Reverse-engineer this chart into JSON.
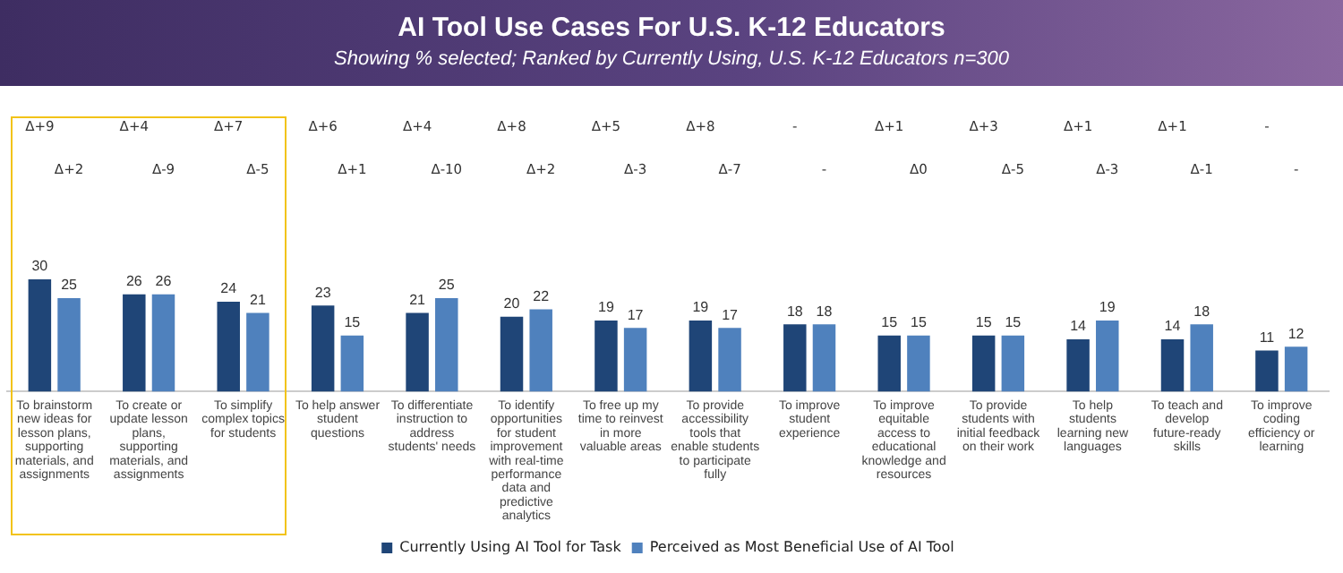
{
  "chart_data": {
    "type": "bar",
    "title": "AI Tool Use Cases For U.S. K-12 Educators",
    "subtitle": "Showing % selected; Ranked by Currently Using, U.S. K-12 Educators n=300",
    "categories": [
      "To brainstorm new ideas for lesson plans, supporting materials, and assignments",
      "To create or update lesson plans, supporting materials, and assignments",
      "To simplify complex topics for students",
      "To help answer student questions",
      "To differentiate instruction to address students' needs",
      "To identify opportunities for student improvement with real-time performance data and predictive analytics",
      "To free up my time to reinvest in more valuable areas",
      "To provide accessibility tools that enable students to participate fully",
      "To improve student experience",
      "To improve equitable access to educational knowledge and resources",
      "To provide students with initial feedback on their work",
      "To help students learning new languages",
      "To teach and develop future-ready skills",
      "To improve coding efficiency or learning"
    ],
    "series": [
      {
        "name": "Currently Using AI Tool for Task",
        "color": "#1f4577",
        "values": [
          30,
          26,
          24,
          23,
          21,
          20,
          19,
          19,
          18,
          15,
          15,
          14,
          14,
          11
        ]
      },
      {
        "name": "Perceived as Most Beneficial Use of AI Tool",
        "color": "#4f81bd",
        "values": [
          25,
          26,
          21,
          15,
          25,
          22,
          17,
          17,
          18,
          15,
          15,
          19,
          18,
          12
        ]
      }
    ],
    "data_labels": true,
    "legend": "bottom",
    "grid": false,
    "annotations": [
      "Δ+9",
      "Δ+2",
      "Δ+4",
      "Δ-9",
      "Δ+7",
      "Δ-5",
      "Δ+6",
      "Δ+1",
      "Δ+4",
      "Δ-10",
      "Δ+8",
      "Δ+2",
      "Δ+5",
      "Δ-3",
      "Δ+8",
      "Δ-7",
      "-",
      "-",
      "Δ+1",
      "Δ0",
      "Δ+3",
      "Δ-5",
      "Δ+1",
      "Δ-3",
      "Δ+1",
      "Δ-1",
      "-",
      "-"
    ]
  }
}
